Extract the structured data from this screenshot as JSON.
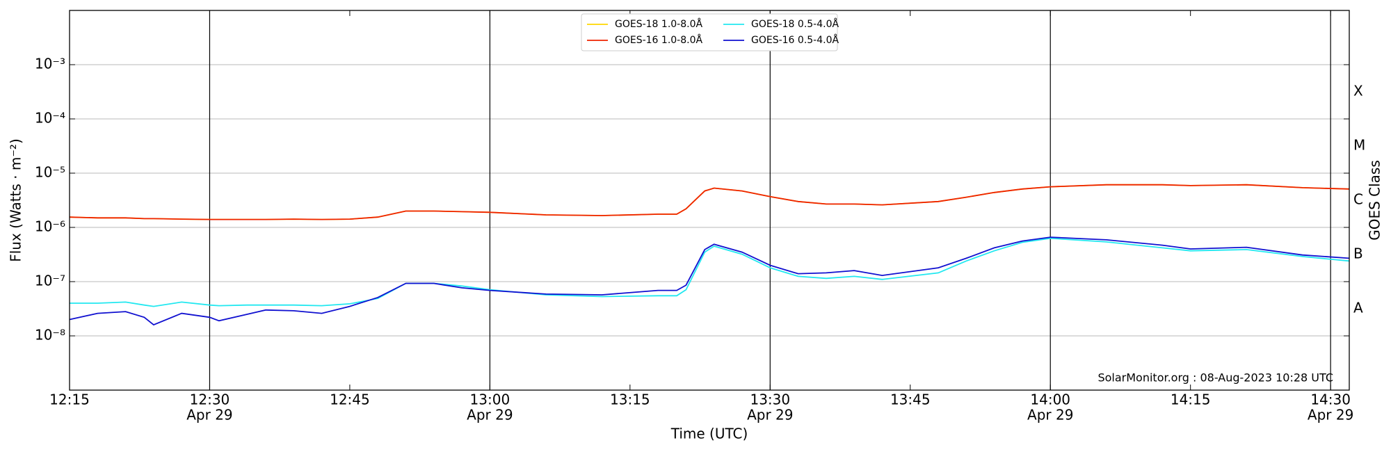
{
  "chart_data": {
    "type": "line",
    "xlabel": "Time (UTC)",
    "ylabel": "Flux (Watts · m⁻²)",
    "y2label": "GOES Class",
    "annotation": "SolarMonitor.org : 08-Aug-2023 10:28 UTC",
    "log_scale": true,
    "grid": true,
    "legend": "upper center",
    "x": [
      "12:15",
      "12:18",
      "12:21",
      "12:23",
      "12:24",
      "12:27",
      "12:30",
      "12:31",
      "12:34",
      "12:36",
      "12:39",
      "12:42",
      "12:45",
      "12:48",
      "12:51",
      "12:54",
      "12:57",
      "13:00",
      "13:06",
      "13:12",
      "13:18",
      "13:20",
      "13:21",
      "13:23",
      "13:24",
      "13:27",
      "13:30",
      "13:33",
      "13:36",
      "13:39",
      "13:42",
      "13:48",
      "13:51",
      "13:54",
      "13:57",
      "14:00",
      "14:06",
      "14:12",
      "14:15",
      "14:21",
      "14:27",
      "14:32"
    ],
    "xlim": [
      "12:15",
      "14:32"
    ],
    "xticks": [
      "12:15",
      "12:30",
      "12:45",
      "13:00",
      "13:15",
      "13:30",
      "13:45",
      "14:00",
      "14:15",
      "14:30"
    ],
    "xtick_dates": [
      null,
      "Apr 29",
      null,
      "Apr 29",
      null,
      "Apr 29",
      null,
      "Apr 29",
      null,
      "Apr 29"
    ],
    "ylim": [
      1e-09,
      0.01
    ],
    "yticks": [
      {
        "value": 1e-08,
        "label": "10⁻⁸"
      },
      {
        "value": 1e-07,
        "label": "10⁻⁷"
      },
      {
        "value": 1e-06,
        "label": "10⁻⁶"
      },
      {
        "value": 1e-05,
        "label": "10⁻⁵"
      },
      {
        "value": 0.0001,
        "label": "10⁻⁴"
      },
      {
        "value": 0.001,
        "label": "10⁻³"
      }
    ],
    "y2lim": [
      1e-09,
      0.01
    ],
    "y2ticks": [
      {
        "value": 3.16e-08,
        "label": "A"
      },
      {
        "value": 3.16e-07,
        "label": "B"
      },
      {
        "value": 3.16e-06,
        "label": "C"
      },
      {
        "value": 3.16e-05,
        "label": "M"
      },
      {
        "value": 0.000316,
        "label": "X"
      }
    ],
    "series": [
      {
        "name": "GOES-18 1.0-8.0Å",
        "color": "#ffd700",
        "values": [
          1.55e-06,
          1.5e-06,
          1.5e-06,
          1.45e-06,
          1.45e-06,
          1.42e-06,
          1.4e-06,
          1.4e-06,
          1.4e-06,
          1.4e-06,
          1.42e-06,
          1.4e-06,
          1.42e-06,
          1.55e-06,
          2e-06,
          2e-06,
          1.95e-06,
          1.9e-06,
          1.7e-06,
          1.65e-06,
          1.75e-06,
          1.75e-06,
          2.2e-06,
          4.7e-06,
          5.3e-06,
          4.7e-06,
          3.7e-06,
          3e-06,
          2.7e-06,
          2.7e-06,
          2.6e-06,
          3e-06,
          3.6e-06,
          4.4e-06,
          5.1e-06,
          5.6e-06,
          6.1e-06,
          6.1e-06,
          5.9e-06,
          6.1e-06,
          5.4e-06,
          5.1e-06
        ]
      },
      {
        "name": "GOES-16 1.0-8.0Å",
        "color": "#ee2200",
        "values": [
          1.55e-06,
          1.5e-06,
          1.5e-06,
          1.45e-06,
          1.45e-06,
          1.42e-06,
          1.4e-06,
          1.4e-06,
          1.4e-06,
          1.4e-06,
          1.42e-06,
          1.4e-06,
          1.42e-06,
          1.55e-06,
          2e-06,
          2e-06,
          1.95e-06,
          1.9e-06,
          1.7e-06,
          1.65e-06,
          1.75e-06,
          1.75e-06,
          2.2e-06,
          4.7e-06,
          5.3e-06,
          4.7e-06,
          3.7e-06,
          3e-06,
          2.7e-06,
          2.7e-06,
          2.6e-06,
          3e-06,
          3.6e-06,
          4.4e-06,
          5.1e-06,
          5.6e-06,
          6.1e-06,
          6.1e-06,
          5.9e-06,
          6.1e-06,
          5.4e-06,
          5.1e-06
        ]
      },
      {
        "name": "GOES-18 0.5-4.0Å",
        "color": "#22e8f0",
        "values": [
          4e-08,
          4e-08,
          4.2e-08,
          3.7e-08,
          3.5e-08,
          4.2e-08,
          3.7e-08,
          3.6e-08,
          3.7e-08,
          3.7e-08,
          3.7e-08,
          3.6e-08,
          3.9e-08,
          4.9e-08,
          9.3e-08,
          9.3e-08,
          8.3e-08,
          7.1e-08,
          5.7e-08,
          5.3e-08,
          5.5e-08,
          5.5e-08,
          7.1e-08,
          3.5e-07,
          4.5e-07,
          3.2e-07,
          1.8e-07,
          1.25e-07,
          1.15e-07,
          1.25e-07,
          1.1e-07,
          1.45e-07,
          2.4e-07,
          3.7e-07,
          5.3e-07,
          6.3e-07,
          5.4e-07,
          4.2e-07,
          3.7e-07,
          3.9e-07,
          2.9e-07,
          2.4e-07
        ]
      },
      {
        "name": "GOES-16 0.5-4.0Å",
        "color": "#1010d0",
        "values": [
          2e-08,
          2.6e-08,
          2.8e-08,
          2.2e-08,
          1.6e-08,
          2.6e-08,
          2.2e-08,
          1.9e-08,
          2.5e-08,
          3e-08,
          2.9e-08,
          2.6e-08,
          3.5e-08,
          5.1e-08,
          9.3e-08,
          9.3e-08,
          7.7e-08,
          6.9e-08,
          5.9e-08,
          5.7e-08,
          6.9e-08,
          6.9e-08,
          8.6e-08,
          3.9e-07,
          4.9e-07,
          3.5e-07,
          2e-07,
          1.4e-07,
          1.45e-07,
          1.6e-07,
          1.3e-07,
          1.8e-07,
          2.7e-07,
          4.2e-07,
          5.6e-07,
          6.6e-07,
          5.9e-07,
          4.7e-07,
          4e-07,
          4.3e-07,
          3.1e-07,
          2.7e-07
        ]
      }
    ]
  }
}
